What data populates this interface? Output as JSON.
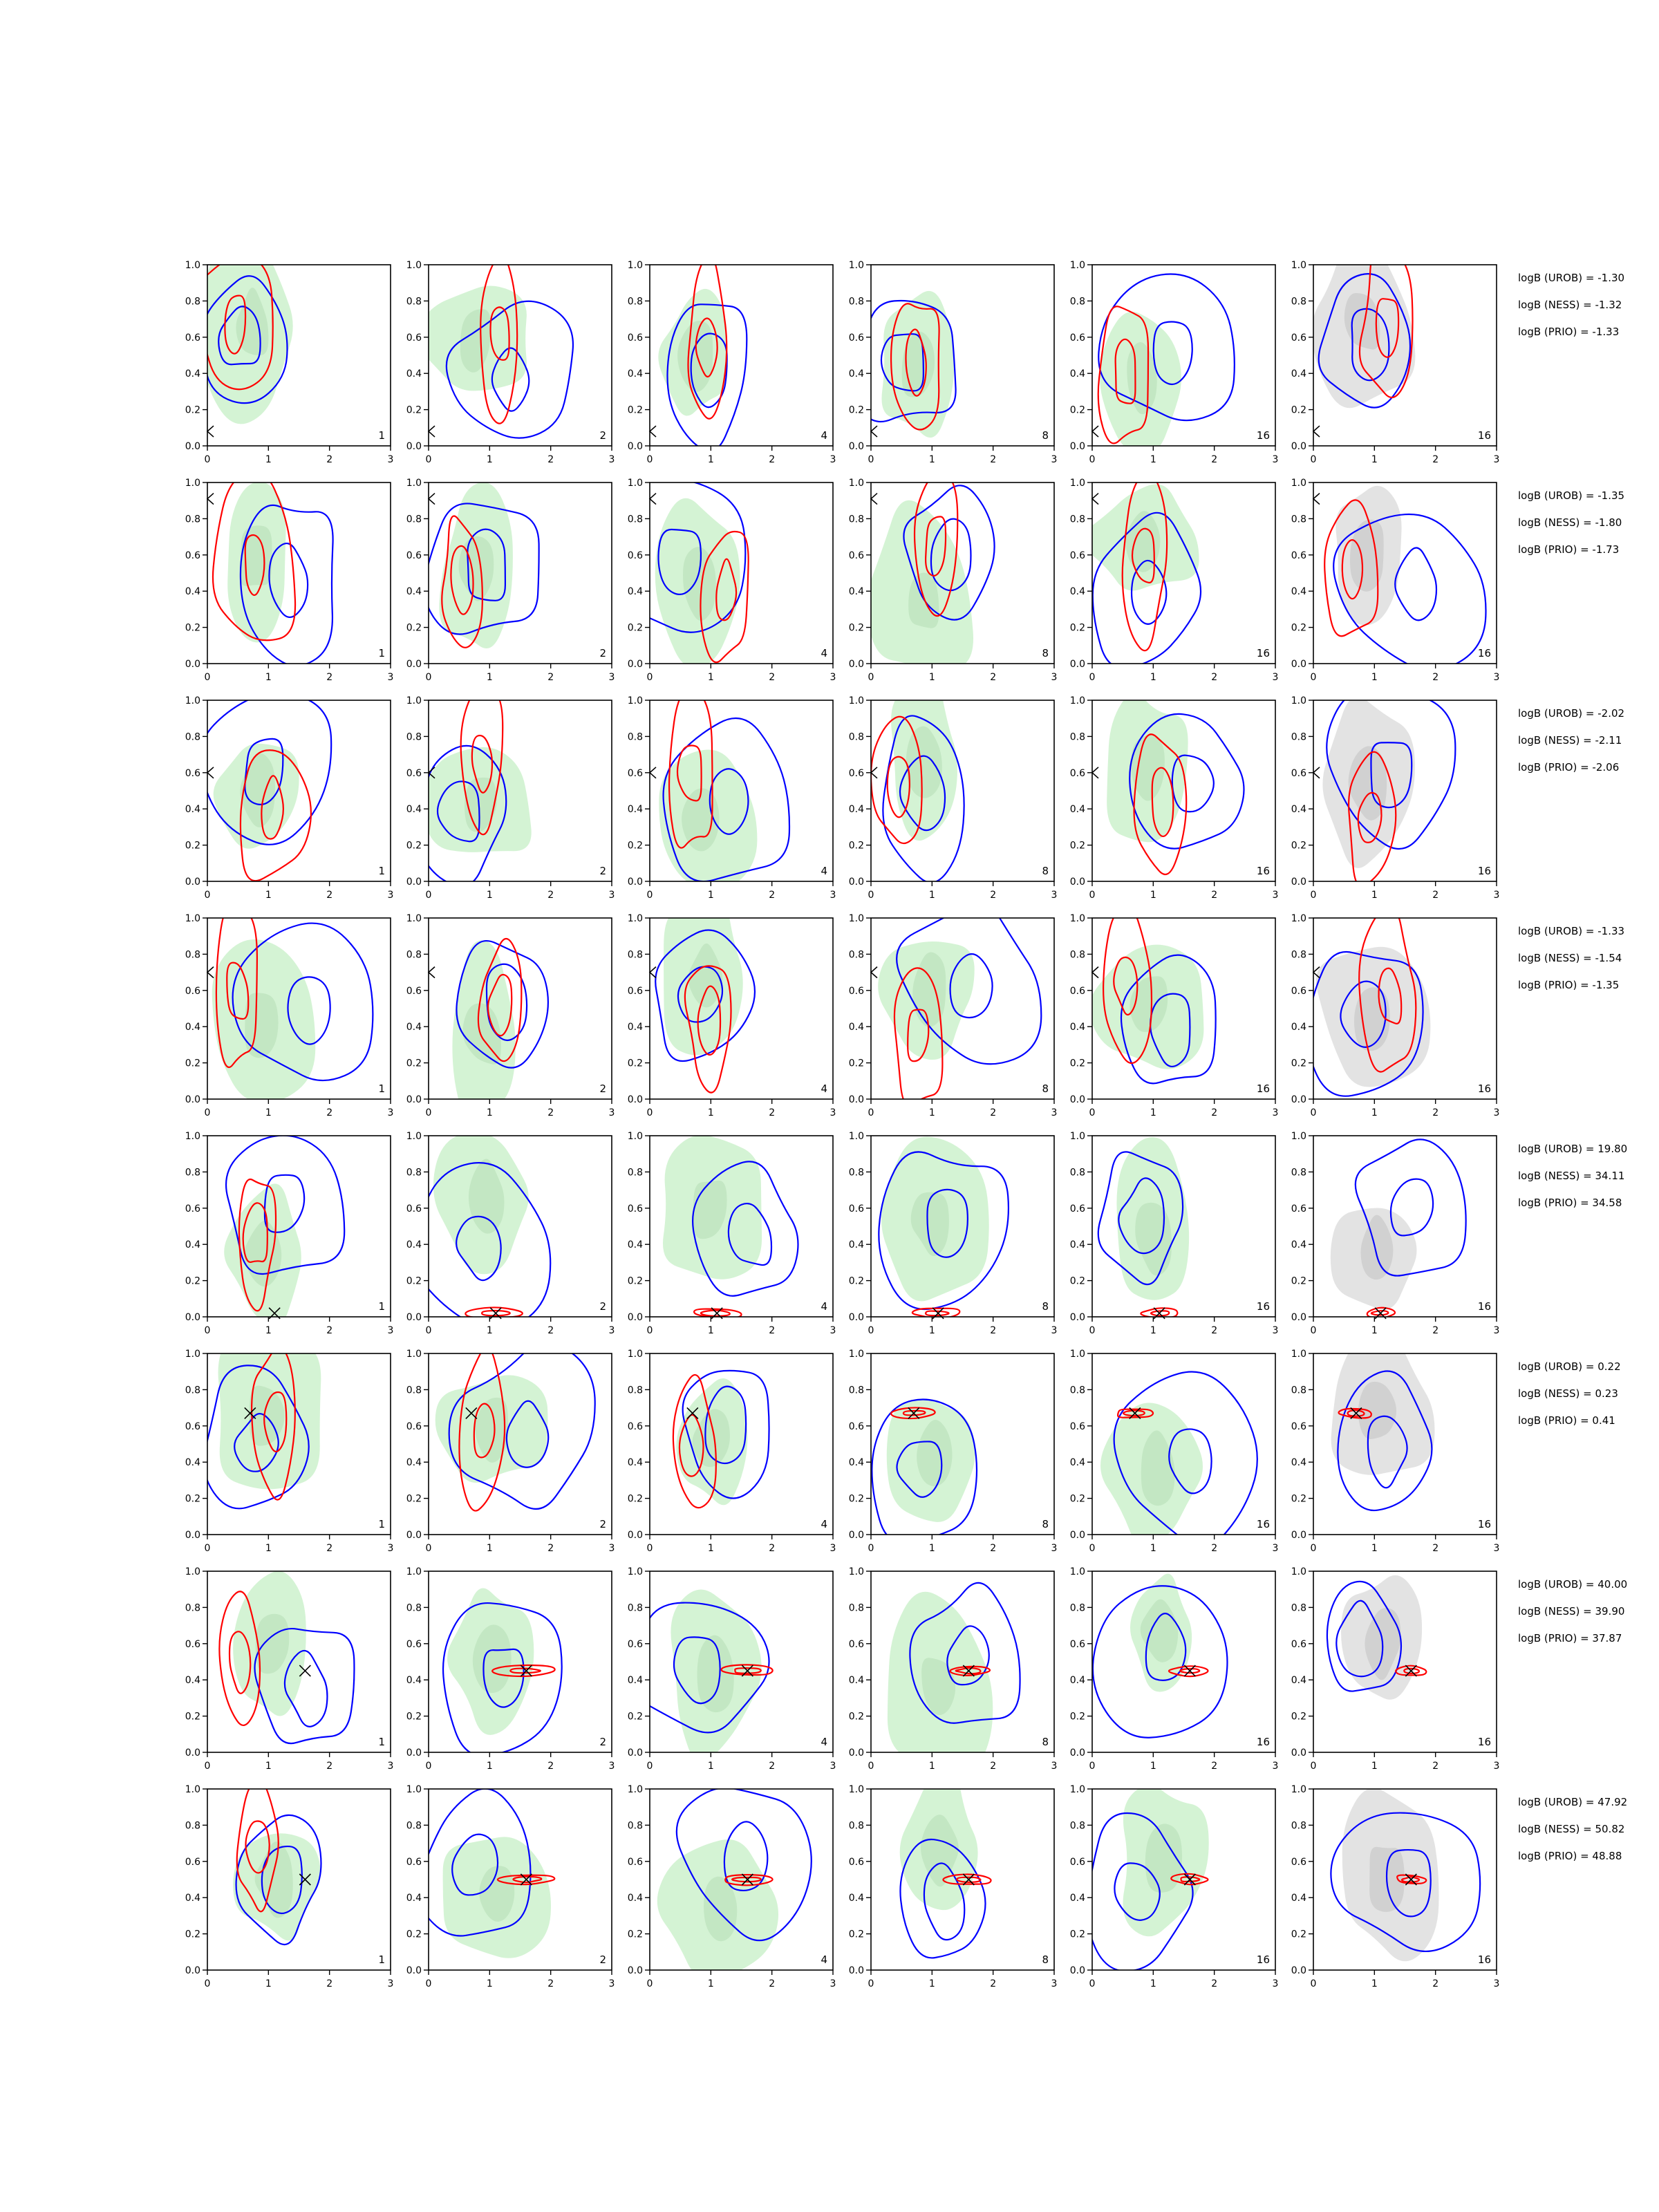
{
  "figure": {
    "xlim": [
      0,
      3
    ],
    "ylim": [
      0,
      1
    ],
    "xticks": [
      "0",
      "1",
      "2",
      "3"
    ],
    "yticks": [
      "0.0",
      "0.2",
      "0.4",
      "0.6",
      "0.8",
      "1.0"
    ],
    "column_labels": [
      "1",
      "2",
      "4",
      "8",
      "16",
      "16"
    ]
  },
  "colors": {
    "blue_contour": "#0000ff",
    "red_contour": "#ff0000",
    "green_fill": "#c6efc6",
    "grey_fill": "#d9d9d9",
    "marker": "#000000",
    "axes": "#000000"
  },
  "chart_data": {
    "type": "contour-grid",
    "rows": 8,
    "columns": 6,
    "x_range": [
      0,
      3
    ],
    "y_range": [
      0,
      1
    ],
    "marker": "x",
    "rows_data": [
      {
        "true_point": [
          0.0,
          0.08
        ],
        "annotations": [
          "logB (UROB) = -1.30",
          "logB (NESS) = -1.32",
          "logB (PRIO) = -1.33"
        ]
      },
      {
        "true_point": [
          0.0,
          0.91
        ],
        "annotations": [
          "logB (UROB) = -1.35",
          "logB (NESS) = -1.80",
          "logB (PRIO) = -1.73"
        ]
      },
      {
        "true_point": [
          0.0,
          0.6
        ],
        "annotations": [
          "logB (UROB) = -2.02",
          "logB (NESS) = -2.11",
          "logB (PRIO) = -2.06"
        ]
      },
      {
        "true_point": [
          0.0,
          0.7
        ],
        "annotations": [
          "logB (UROB) = -1.33",
          "logB (NESS) = -1.54",
          "logB (PRIO) = -1.35"
        ]
      },
      {
        "true_point": [
          1.1,
          0.02
        ],
        "annotations": [
          "logB (UROB) = 19.80",
          "logB (NESS) = 34.11",
          "logB (PRIO) = 34.58"
        ]
      },
      {
        "true_point": [
          0.7,
          0.67
        ],
        "annotations": [
          "logB (UROB) = 0.22",
          "logB (NESS) = 0.23",
          "logB (PRIO) = 0.41"
        ]
      },
      {
        "true_point": [
          1.6,
          0.45
        ],
        "annotations": [
          "logB (UROB) = 40.00",
          "logB (NESS) = 39.90",
          "logB (PRIO) = 37.87"
        ]
      },
      {
        "true_point": [
          1.6,
          0.5
        ],
        "annotations": [
          "logB (UROB) = 47.92",
          "logB (NESS) = 50.82",
          "logB (PRIO) = 48.88"
        ]
      }
    ]
  }
}
